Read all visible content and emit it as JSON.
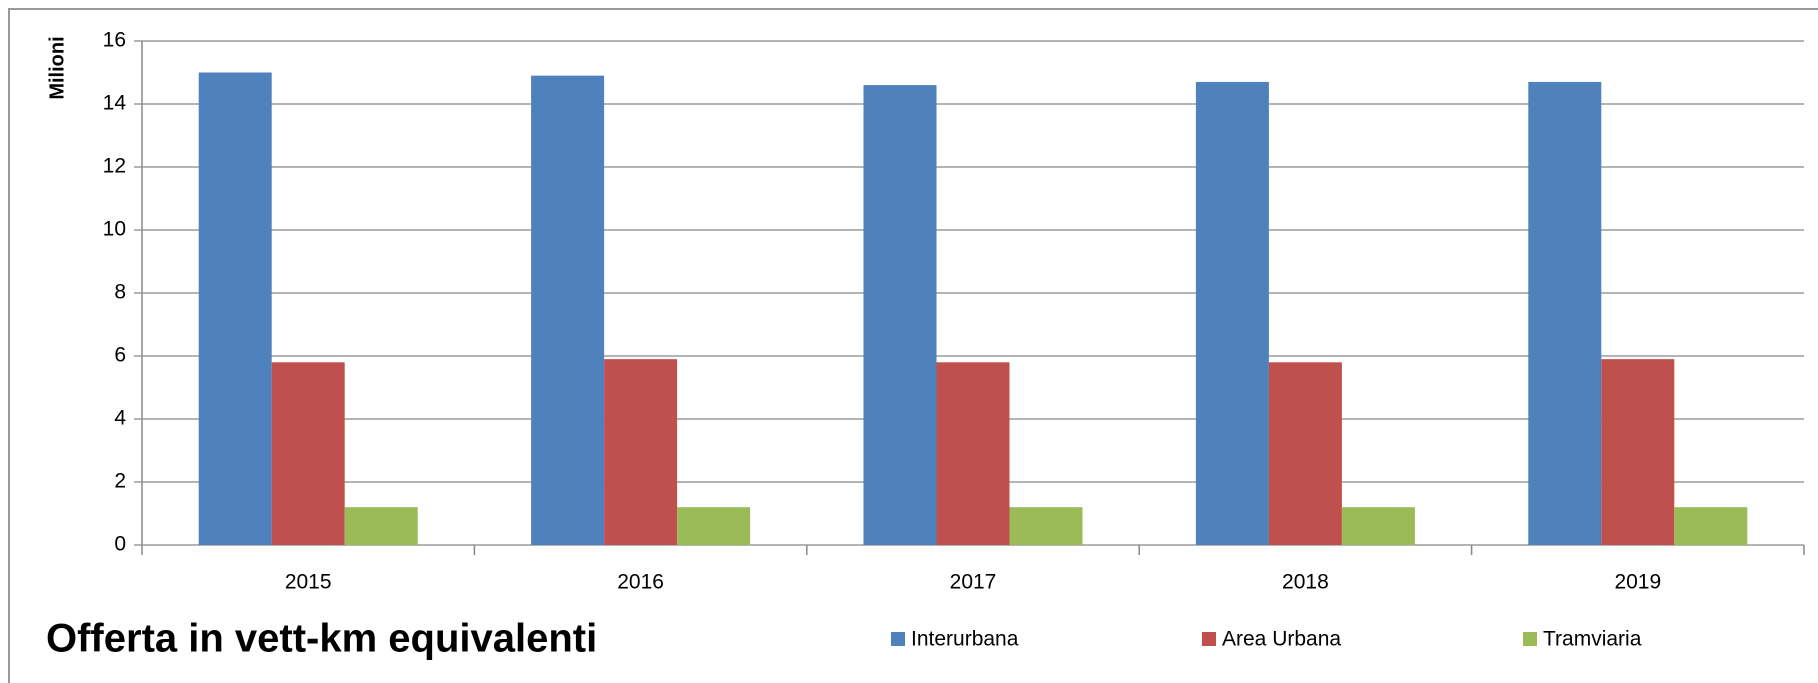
{
  "chart_data": {
    "type": "bar",
    "title": "Offerta in vett-km equivalenti",
    "y_label": "Milioni",
    "categories": [
      "2015",
      "2016",
      "2017",
      "2018",
      "2019"
    ],
    "series": [
      {
        "name": "Interurbana",
        "color": "#4f81bd",
        "values": [
          15.0,
          14.9,
          14.6,
          14.7,
          14.7
        ]
      },
      {
        "name": "Area Urbana",
        "color": "#c0504d",
        "values": [
          5.8,
          5.9,
          5.8,
          5.8,
          5.9
        ]
      },
      {
        "name": "Tramviaria",
        "color": "#9bbb59",
        "values": [
          1.2,
          1.2,
          1.2,
          1.2,
          1.2
        ]
      }
    ],
    "ylim": [
      0,
      16
    ],
    "yticks": [
      0,
      2,
      4,
      6,
      8,
      10,
      12,
      14,
      16
    ],
    "grid": true,
    "legend": "bottom"
  }
}
